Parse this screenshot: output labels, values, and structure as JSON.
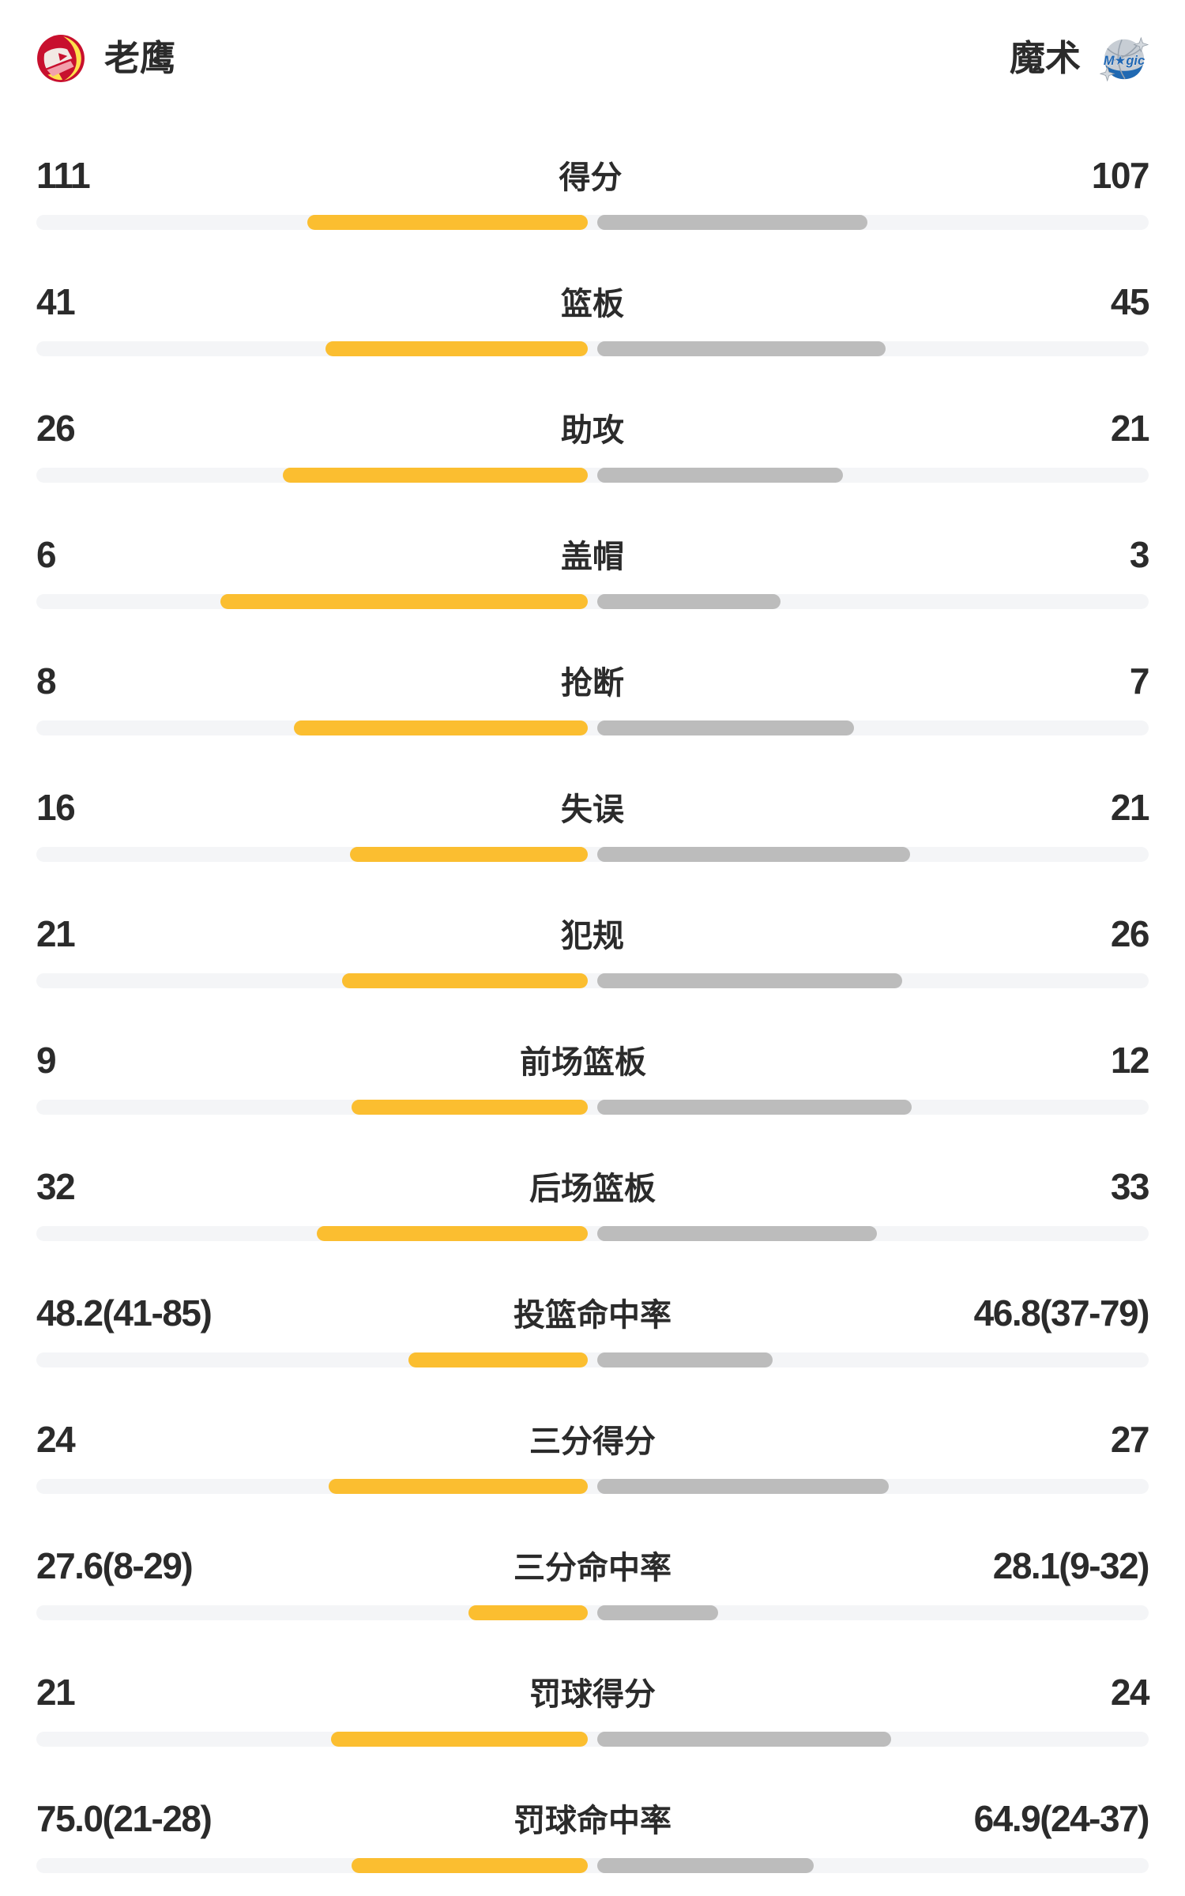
{
  "header": {
    "home_name": "老鹰",
    "away_name": "魔术"
  },
  "colors": {
    "home_bar": "#FBBE30",
    "away_bar": "#BCBCBC",
    "track": "#F4F5F7",
    "text": "#2B2B2B",
    "hawks_red": "#C8102E",
    "hawks_yellow": "#FFE14D",
    "hawks_white": "#F2E9E4",
    "hawks_pink": "#F2A0AC",
    "magic_blue": "#2069B2",
    "magic_silver": "#C7CDD4"
  },
  "chart_data": {
    "type": "bar",
    "orientation": "horizontal-mirrored-from-center",
    "legend": [
      "老鹰",
      "魔术"
    ],
    "bar_rule": "count rows: width = value/(home+away) of half track; percent rows: width = value/(value+100) of half track",
    "rows": [
      {
        "label": "得分",
        "kind": "count",
        "home": 111,
        "away": 107,
        "home_text": "111",
        "away_text": "107"
      },
      {
        "label": "篮板",
        "kind": "count",
        "home": 41,
        "away": 45,
        "home_text": "41",
        "away_text": "45"
      },
      {
        "label": "助攻",
        "kind": "count",
        "home": 26,
        "away": 21,
        "home_text": "26",
        "away_text": "21"
      },
      {
        "label": "盖帽",
        "kind": "count",
        "home": 6,
        "away": 3,
        "home_text": "6",
        "away_text": "3"
      },
      {
        "label": "抢断",
        "kind": "count",
        "home": 8,
        "away": 7,
        "home_text": "8",
        "away_text": "7"
      },
      {
        "label": "失误",
        "kind": "count",
        "home": 16,
        "away": 21,
        "home_text": "16",
        "away_text": "21"
      },
      {
        "label": "犯规",
        "kind": "count",
        "home": 21,
        "away": 26,
        "home_text": "21",
        "away_text": "26"
      },
      {
        "label": "前场篮板",
        "kind": "count",
        "home": 9,
        "away": 12,
        "home_text": "9",
        "away_text": "12"
      },
      {
        "label": "后场篮板",
        "kind": "count",
        "home": 32,
        "away": 33,
        "home_text": "32",
        "away_text": "33"
      },
      {
        "label": "投篮命中率",
        "kind": "percent",
        "home": 48.2,
        "away": 46.8,
        "home_text": "48.2(41-85)",
        "away_text": "46.8(37-79)"
      },
      {
        "label": "三分得分",
        "kind": "count",
        "home": 24,
        "away": 27,
        "home_text": "24",
        "away_text": "27"
      },
      {
        "label": "三分命中率",
        "kind": "percent",
        "home": 27.6,
        "away": 28.1,
        "home_text": "27.6(8-29)",
        "away_text": "28.1(9-32)"
      },
      {
        "label": "罚球得分",
        "kind": "count",
        "home": 21,
        "away": 24,
        "home_text": "21",
        "away_text": "24"
      },
      {
        "label": "罚球命中率",
        "kind": "percent",
        "home": 75.0,
        "away": 64.9,
        "home_text": "75.0(21-28)",
        "away_text": "64.9(24-37)"
      }
    ]
  }
}
